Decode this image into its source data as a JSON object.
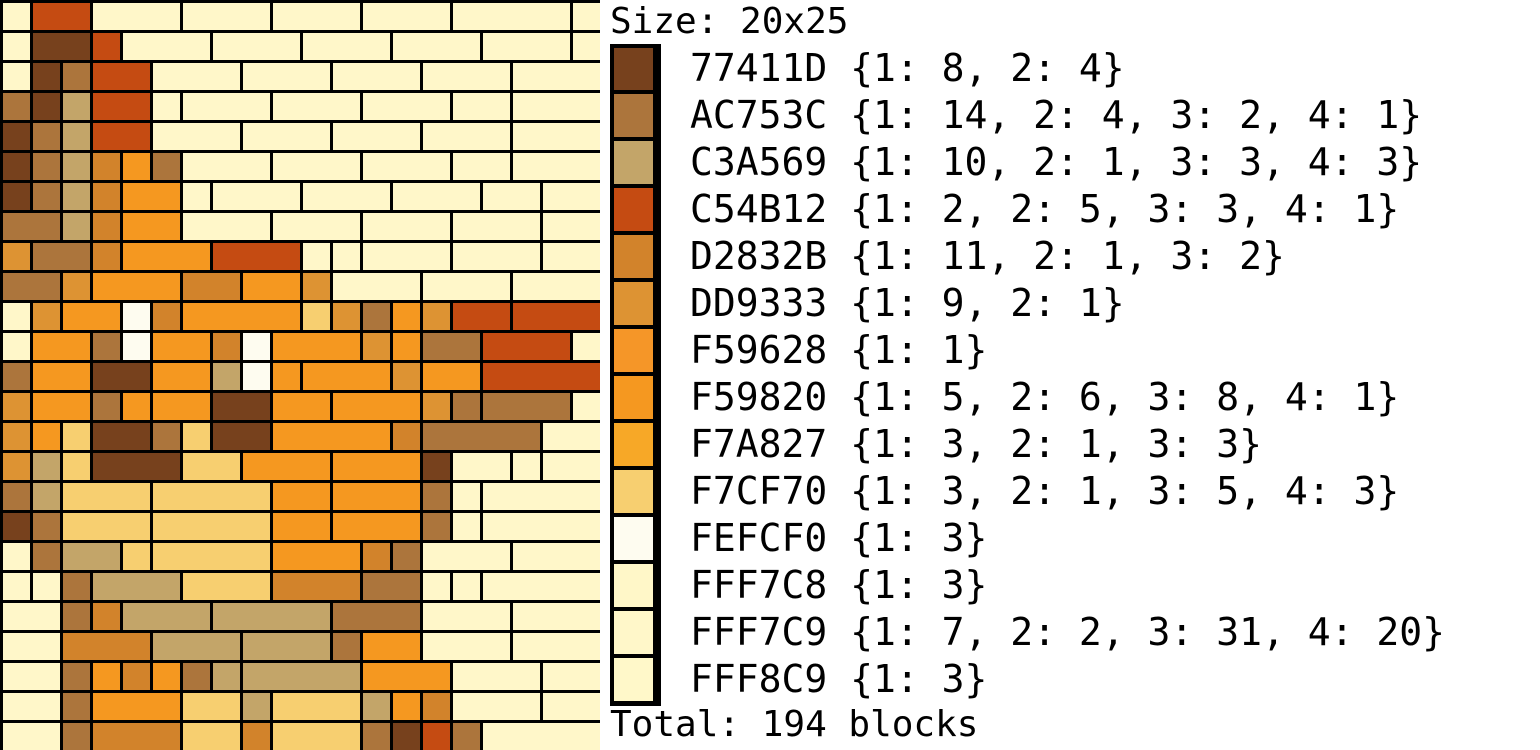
{
  "size_label": "Size: 20x25",
  "total_label": "Total: 194 blocks",
  "palette": [
    {
      "hex": "77411D",
      "color": "#77411D",
      "counts": "{1: 8, 2: 4}"
    },
    {
      "hex": "AC753C",
      "color": "#AC753C",
      "counts": "{1: 14, 2: 4, 3: 2, 4: 1}"
    },
    {
      "hex": "C3A569",
      "color": "#C3A569",
      "counts": "{1: 10, 2: 1, 3: 3, 4: 3}"
    },
    {
      "hex": "C54B12",
      "color": "#C54B12",
      "counts": "{1: 2, 2: 5, 3: 3, 4: 1}"
    },
    {
      "hex": "D2832B",
      "color": "#D2832B",
      "counts": "{1: 11, 2: 1, 3: 2}"
    },
    {
      "hex": "DD9333",
      "color": "#DD9333",
      "counts": "{1: 9, 2: 1}"
    },
    {
      "hex": "F59628",
      "color": "#F59628",
      "counts": "{1: 1}"
    },
    {
      "hex": "F59820",
      "color": "#F59820",
      "counts": "{1: 5, 2: 6, 3: 8, 4: 1}"
    },
    {
      "hex": "F7A827",
      "color": "#F7A827",
      "counts": "{1: 3, 2: 1, 3: 3}"
    },
    {
      "hex": "F7CF70",
      "color": "#F7CF70",
      "counts": "{1: 3, 2: 1, 3: 5, 4: 3}"
    },
    {
      "hex": "FEFCF0",
      "color": "#FEFCF0",
      "counts": "{1: 3}"
    },
    {
      "hex": "FFF7C8",
      "color": "#FFF7C8",
      "counts": "{1: 3}"
    },
    {
      "hex": "FFF7C9",
      "color": "#FFF7C9",
      "counts": "{1: 7, 2: 2, 3: 31, 4: 20}"
    },
    {
      "hex": "FFF8C9",
      "color": "#FFF8C9",
      "counts": "{1: 3}"
    }
  ],
  "mosaic_rows": [
    [
      [
        "C",
        1
      ],
      [
        "R",
        2
      ],
      [
        "C",
        3
      ],
      [
        "C",
        3
      ],
      [
        "C",
        3
      ],
      [
        "C",
        3
      ],
      [
        "C",
        4
      ]
    ],
    [
      [
        "C",
        1
      ],
      [
        "B",
        2
      ],
      [
        "R",
        1
      ],
      [
        "C",
        3
      ],
      [
        "C",
        3
      ],
      [
        "C",
        3
      ],
      [
        "C",
        3
      ],
      [
        "C",
        3
      ]
    ],
    [
      [
        "C",
        1
      ],
      [
        "B",
        1
      ],
      [
        "M",
        1
      ],
      [
        "R",
        2
      ],
      [
        "C",
        3
      ],
      [
        "C",
        3
      ],
      [
        "C",
        3
      ],
      [
        "C",
        3
      ]
    ],
    [
      [
        "M",
        1
      ],
      [
        "B",
        1
      ],
      [
        "T",
        1
      ],
      [
        "R",
        2
      ],
      [
        "C",
        1
      ],
      [
        "C",
        3
      ],
      [
        "C",
        3
      ],
      [
        "C",
        3
      ],
      [
        "C",
        2
      ]
    ],
    [
      [
        "B",
        1
      ],
      [
        "M",
        1
      ],
      [
        "T",
        1
      ],
      [
        "R",
        2
      ],
      [
        "C",
        3
      ],
      [
        "C",
        3
      ],
      [
        "C",
        3
      ],
      [
        "C",
        3
      ]
    ],
    [
      [
        "B",
        1
      ],
      [
        "M",
        1
      ],
      [
        "T",
        1
      ],
      [
        "D",
        1
      ],
      [
        "O",
        1
      ],
      [
        "M",
        1
      ],
      [
        "C",
        3
      ],
      [
        "C",
        3
      ],
      [
        "C",
        3
      ],
      [
        "C",
        2
      ]
    ],
    [
      [
        "B",
        1
      ],
      [
        "M",
        1
      ],
      [
        "T",
        1
      ],
      [
        "D",
        1
      ],
      [
        "O",
        2
      ],
      [
        "C",
        1
      ],
      [
        "C",
        3
      ],
      [
        "C",
        3
      ],
      [
        "C",
        3
      ],
      [
        "C",
        2
      ]
    ],
    [
      [
        "M",
        2
      ],
      [
        "T",
        1
      ],
      [
        "D",
        1
      ],
      [
        "O",
        2
      ],
      [
        "C",
        3
      ],
      [
        "C",
        3
      ],
      [
        "C",
        3
      ],
      [
        "C",
        3
      ]
    ],
    [
      [
        "K",
        1
      ],
      [
        "M",
        2
      ],
      [
        "D",
        1
      ],
      [
        "O",
        3
      ],
      [
        "R",
        3
      ],
      [
        "C",
        1
      ],
      [
        "C",
        1
      ],
      [
        "C",
        3
      ],
      [
        "C",
        3
      ]
    ],
    [
      [
        "M",
        2
      ],
      [
        "K",
        1
      ],
      [
        "O",
        3
      ],
      [
        "D",
        2
      ],
      [
        "O",
        2
      ],
      [
        "K",
        1
      ],
      [
        "C",
        3
      ],
      [
        "C",
        3
      ],
      [
        "C",
        3
      ]
    ],
    [
      [
        "C",
        1
      ],
      [
        "K",
        1
      ],
      [
        "O",
        2
      ],
      [
        "W",
        1
      ],
      [
        "D",
        1
      ],
      [
        "O",
        4
      ],
      [
        "P",
        1
      ],
      [
        "K",
        1
      ],
      [
        "M",
        1
      ],
      [
        "O",
        1
      ],
      [
        "K",
        1
      ],
      [
        "R",
        2
      ],
      [
        "R",
        3
      ]
    ],
    [
      [
        "C",
        1
      ],
      [
        "O",
        2
      ],
      [
        "M",
        1
      ],
      [
        "W",
        1
      ],
      [
        "O",
        2
      ],
      [
        "D",
        1
      ],
      [
        "W",
        1
      ],
      [
        "O",
        3
      ],
      [
        "K",
        1
      ],
      [
        "O",
        1
      ],
      [
        "M",
        2
      ],
      [
        "R",
        3
      ]
    ],
    [
      [
        "M",
        1
      ],
      [
        "O",
        2
      ],
      [
        "B",
        2
      ],
      [
        "O",
        2
      ],
      [
        "T",
        1
      ],
      [
        "W",
        1
      ],
      [
        "O",
        1
      ],
      [
        "O",
        3
      ],
      [
        "K",
        1
      ],
      [
        "O",
        2
      ],
      [
        "R",
        4
      ]
    ],
    [
      [
        "K",
        1
      ],
      [
        "O",
        2
      ],
      [
        "M",
        1
      ],
      [
        "O",
        1
      ],
      [
        "O",
        2
      ],
      [
        "B",
        2
      ],
      [
        "O",
        2
      ],
      [
        "O",
        3
      ],
      [
        "K",
        1
      ],
      [
        "M",
        1
      ],
      [
        "M",
        3
      ],
      [
        "C",
        1
      ]
    ],
    [
      [
        "K",
        1
      ],
      [
        "O",
        1
      ],
      [
        "P",
        1
      ],
      [
        "B",
        2
      ],
      [
        "M",
        1
      ],
      [
        "P",
        1
      ],
      [
        "B",
        2
      ],
      [
        "O",
        4
      ],
      [
        "D",
        1
      ],
      [
        "M",
        4
      ],
      [
        "C",
        2
      ]
    ],
    [
      [
        "K",
        1
      ],
      [
        "T",
        1
      ],
      [
        "P",
        1
      ],
      [
        "B",
        3
      ],
      [
        "P",
        2
      ],
      [
        "O",
        3
      ],
      [
        "O",
        3
      ],
      [
        "B",
        1
      ],
      [
        "C",
        2
      ],
      [
        "C",
        1
      ],
      [
        "C",
        2
      ]
    ],
    [
      [
        "M",
        1
      ],
      [
        "T",
        1
      ],
      [
        "P",
        3
      ],
      [
        "P",
        4
      ],
      [
        "O",
        2
      ],
      [
        "O",
        3
      ],
      [
        "M",
        1
      ],
      [
        "C",
        1
      ],
      [
        "C",
        4
      ]
    ],
    [
      [
        "B",
        1
      ],
      [
        "M",
        1
      ],
      [
        "P",
        3
      ],
      [
        "P",
        4
      ],
      [
        "O",
        2
      ],
      [
        "O",
        3
      ],
      [
        "M",
        1
      ],
      [
        "C",
        1
      ],
      [
        "C",
        4
      ]
    ],
    [
      [
        "C",
        1
      ],
      [
        "M",
        1
      ],
      [
        "T",
        2
      ],
      [
        "P",
        1
      ],
      [
        "P",
        4
      ],
      [
        "O",
        3
      ],
      [
        "D",
        1
      ],
      [
        "M",
        1
      ],
      [
        "C",
        3
      ],
      [
        "C",
        3
      ]
    ],
    [
      [
        "C",
        1
      ],
      [
        "C",
        1
      ],
      [
        "M",
        1
      ],
      [
        "T",
        3
      ],
      [
        "P",
        3
      ],
      [
        "D",
        3
      ],
      [
        "M",
        2
      ],
      [
        "C",
        1
      ],
      [
        "C",
        1
      ],
      [
        "C",
        4
      ]
    ],
    [
      [
        "C",
        2
      ],
      [
        "M",
        1
      ],
      [
        "D",
        1
      ],
      [
        "T",
        3
      ],
      [
        "T",
        4
      ],
      [
        "M",
        3
      ],
      [
        "C",
        3
      ],
      [
        "C",
        3
      ]
    ],
    [
      [
        "C",
        2
      ],
      [
        "D",
        3
      ],
      [
        "T",
        3
      ],
      [
        "T",
        3
      ],
      [
        "M",
        1
      ],
      [
        "O",
        2
      ],
      [
        "C",
        3
      ],
      [
        "C",
        3
      ]
    ],
    [
      [
        "C",
        2
      ],
      [
        "M",
        1
      ],
      [
        "O",
        1
      ],
      [
        "D",
        1
      ],
      [
        "O",
        1
      ],
      [
        "M",
        1
      ],
      [
        "T",
        1
      ],
      [
        "T",
        4
      ],
      [
        "O",
        3
      ],
      [
        "C",
        3
      ],
      [
        "C",
        2
      ]
    ],
    [
      [
        "C",
        2
      ],
      [
        "M",
        1
      ],
      [
        "O",
        3
      ],
      [
        "P",
        2
      ],
      [
        "T",
        1
      ],
      [
        "P",
        3
      ],
      [
        "T",
        1
      ],
      [
        "O",
        1
      ],
      [
        "D",
        1
      ],
      [
        "C",
        3
      ],
      [
        "C",
        2
      ]
    ],
    [
      [
        "C",
        2
      ],
      [
        "M",
        1
      ],
      [
        "D",
        3
      ],
      [
        "P",
        2
      ],
      [
        "D",
        1
      ],
      [
        "P",
        3
      ],
      [
        "M",
        1
      ],
      [
        "B",
        1
      ],
      [
        "R",
        1
      ],
      [
        "M",
        1
      ],
      [
        "C",
        4
      ]
    ]
  ],
  "mosaic_colors": {
    "C": "#FFF7C9",
    "R": "#C54B12",
    "B": "#77411D",
    "M": "#AC753C",
    "T": "#C3A569",
    "D": "#D2832B",
    "O": "#F59820",
    "K": "#DD9333",
    "P": "#F7CF70",
    "W": "#FEFCF0"
  }
}
